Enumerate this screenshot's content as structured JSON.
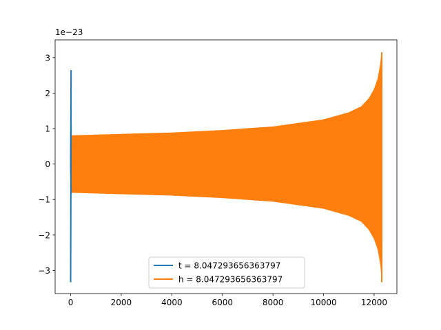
{
  "chart_data": {
    "type": "line",
    "title": "",
    "xlabel": "",
    "ylabel": "",
    "y_offset_label": "1e−23",
    "xlim": [
      -614,
      12900
    ],
    "ylim": [
      -3.65,
      3.5
    ],
    "x_ticks": [
      {
        "value": 0,
        "label": "0"
      },
      {
        "value": 2000,
        "label": "2000"
      },
      {
        "value": 4000,
        "label": "4000"
      },
      {
        "value": 6000,
        "label": "6000"
      },
      {
        "value": 8000,
        "label": "8000"
      },
      {
        "value": 10000,
        "label": "10000"
      },
      {
        "value": 12000,
        "label": "12000"
      }
    ],
    "y_ticks": [
      {
        "value": -3,
        "label": "−3"
      },
      {
        "value": -2,
        "label": "−2"
      },
      {
        "value": -1,
        "label": "−1"
      },
      {
        "value": 0,
        "label": "0"
      },
      {
        "value": 1,
        "label": "1"
      },
      {
        "value": 2,
        "label": "2"
      },
      {
        "value": 3,
        "label": "3"
      }
    ],
    "grid": false,
    "legend_position": "lower-center",
    "series": [
      {
        "name": "t = 8.047293656363797",
        "color": "#1f77b4",
        "points": [
          {
            "x": 0,
            "y": 0.0
          },
          {
            "x": 0,
            "y": 2.65
          },
          {
            "x": 0,
            "y": -3.33
          },
          {
            "x": 0,
            "y": 1.12
          },
          {
            "x": 0,
            "y": -0.05
          },
          {
            "x": 0,
            "y": -0.85
          }
        ]
      },
      {
        "name": "h = 8.047293656363797",
        "color": "#ff7f0e",
        "envelope": [
          {
            "x": 0,
            "y": 0.8
          },
          {
            "x": 2000,
            "y": 0.84
          },
          {
            "x": 4000,
            "y": 0.88
          },
          {
            "x": 6000,
            "y": 0.95
          },
          {
            "x": 8000,
            "y": 1.05
          },
          {
            "x": 10000,
            "y": 1.25
          },
          {
            "x": 11000,
            "y": 1.45
          },
          {
            "x": 11500,
            "y": 1.62
          },
          {
            "x": 11800,
            "y": 1.85
          },
          {
            "x": 12000,
            "y": 2.1
          },
          {
            "x": 12150,
            "y": 2.4
          },
          {
            "x": 12250,
            "y": 2.8
          },
          {
            "x": 12300,
            "y": 3.15
          }
        ],
        "end_value": -3.33
      }
    ]
  }
}
